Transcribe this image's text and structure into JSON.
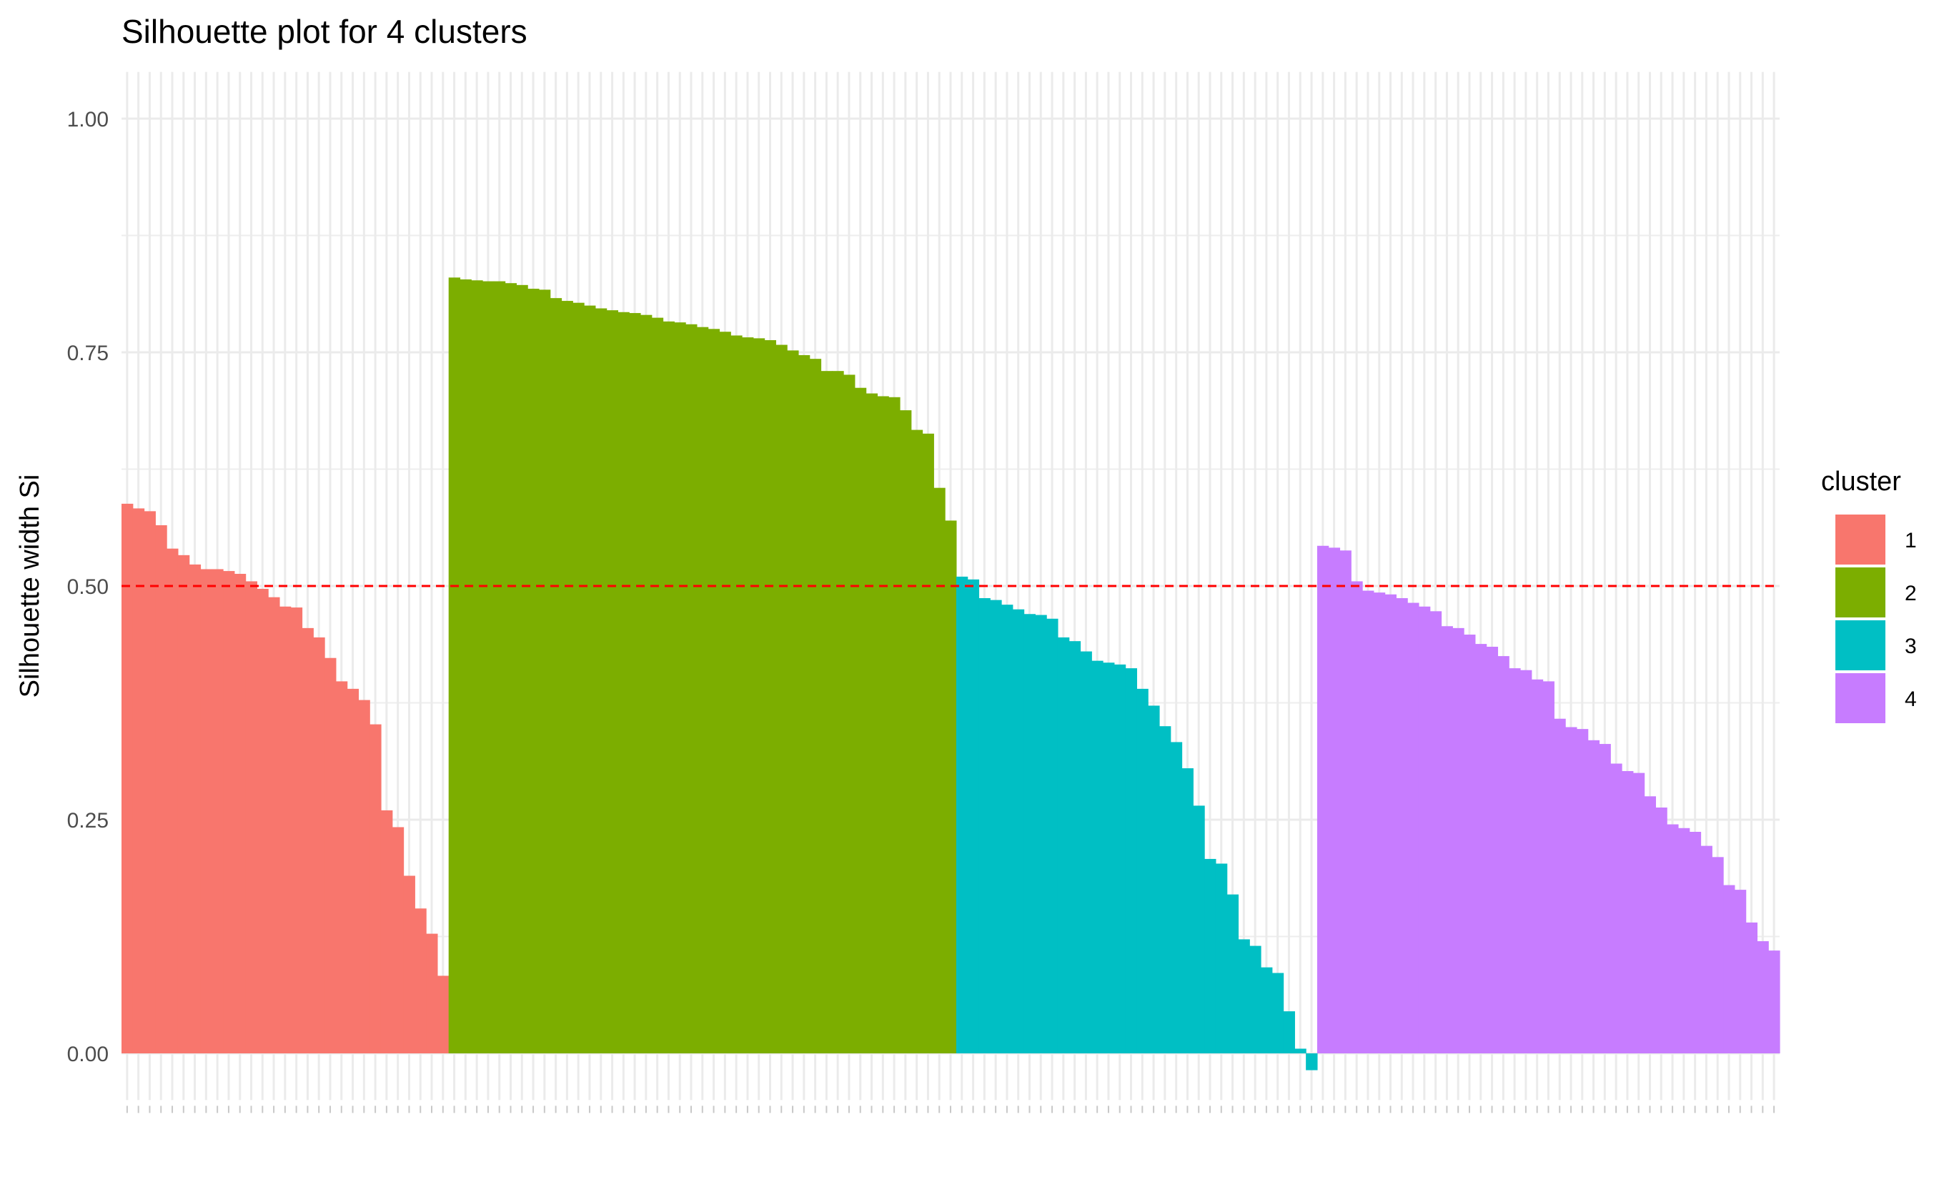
{
  "chart_data": {
    "type": "bar",
    "title": "Silhouette plot for 4 clusters",
    "xlabel": "",
    "ylabel": "Silhouette width Si",
    "ylim": [
      -0.05,
      1.05
    ],
    "yticks": [
      0.0,
      0.25,
      0.5,
      0.75,
      1.0
    ],
    "ytick_labels": [
      "0.00",
      "0.25",
      "0.50",
      "0.75",
      "1.00"
    ],
    "reference_line": {
      "y": 0.5,
      "color": "#FF0000",
      "style": "dashed"
    },
    "grid": true,
    "legend": {
      "title": "cluster",
      "placement": "right",
      "entries": [
        {
          "label": "1",
          "color": "#F8766D"
        },
        {
          "label": "2",
          "color": "#7CAE00"
        },
        {
          "label": "3",
          "color": "#00BFC4"
        },
        {
          "label": "4",
          "color": "#C77CFF"
        }
      ]
    },
    "series": [
      {
        "cluster": "1",
        "color": "#F8766D",
        "values": [
          0.588,
          0.583,
          0.58,
          0.565,
          0.54,
          0.533,
          0.523,
          0.518,
          0.518,
          0.516,
          0.513,
          0.505,
          0.497,
          0.488,
          0.478,
          0.477,
          0.455,
          0.445,
          0.423,
          0.398,
          0.39,
          0.378,
          0.352,
          0.26,
          0.242,
          0.19,
          0.155,
          0.128,
          0.083
        ]
      },
      {
        "cluster": "2",
        "color": "#7CAE00",
        "values": [
          0.83,
          0.828,
          0.827,
          0.826,
          0.826,
          0.824,
          0.822,
          0.818,
          0.817,
          0.808,
          0.805,
          0.803,
          0.8,
          0.797,
          0.795,
          0.793,
          0.792,
          0.79,
          0.787,
          0.783,
          0.782,
          0.78,
          0.777,
          0.775,
          0.772,
          0.768,
          0.766,
          0.765,
          0.763,
          0.758,
          0.752,
          0.747,
          0.743,
          0.73,
          0.73,
          0.726,
          0.712,
          0.706,
          0.703,
          0.702,
          0.688,
          0.667,
          0.663,
          0.605,
          0.57
        ]
      },
      {
        "cluster": "3",
        "color": "#00BFC4",
        "values": [
          0.51,
          0.507,
          0.487,
          0.485,
          0.48,
          0.475,
          0.47,
          0.469,
          0.465,
          0.445,
          0.441,
          0.43,
          0.42,
          0.418,
          0.416,
          0.412,
          0.39,
          0.372,
          0.35,
          0.333,
          0.305,
          0.265,
          0.208,
          0.203,
          0.17,
          0.122,
          0.115,
          0.092,
          0.086,
          0.045,
          0.005,
          -0.018
        ]
      },
      {
        "cluster": "4",
        "color": "#C77CFF",
        "values": [
          0.543,
          0.541,
          0.538,
          0.505,
          0.495,
          0.493,
          0.491,
          0.487,
          0.482,
          0.478,
          0.473,
          0.457,
          0.455,
          0.448,
          0.438,
          0.435,
          0.425,
          0.412,
          0.41,
          0.4,
          0.398,
          0.358,
          0.349,
          0.347,
          0.335,
          0.331,
          0.31,
          0.302,
          0.3,
          0.275,
          0.263,
          0.245,
          0.241,
          0.237,
          0.222,
          0.21,
          0.18,
          0.175,
          0.14,
          0.12,
          0.11
        ]
      }
    ]
  }
}
